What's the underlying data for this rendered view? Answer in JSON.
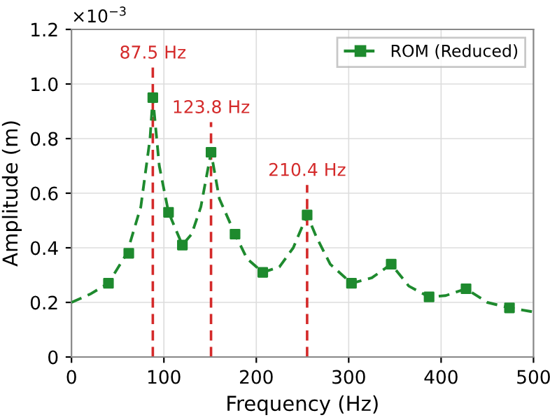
{
  "chart_data": {
    "type": "line",
    "xlabel": "Frequency (Hz)",
    "ylabel": "Amplitude (m)",
    "annotations": [
      "×10$^{−3}$"
    ],
    "xlim": [
      0,
      500
    ],
    "xticks": [
      0,
      100,
      200,
      300,
      400,
      500
    ],
    "ylim": [
      0,
      1.2
    ],
    "yticks": [
      0,
      0.2,
      0.4,
      0.6,
      0.8,
      {
        "value": 1,
        "label": "1.0"
      },
      1.2
    ],
    "grid": true,
    "legend": "top right",
    "series": [
      {
        "color": "#1e8a2e",
        "line_style": "dashed",
        "marker": "none",
        "x": [
          0,
          20,
          40,
          60,
          75,
          85,
          88,
          95,
          105,
          120,
          130,
          140,
          151,
          160,
          177,
          190,
          207,
          225,
          240,
          255,
          265,
          280,
          303,
          325,
          346,
          365,
          387,
          405,
          427,
          450,
          474,
          500
        ],
        "values": [
          0.2,
          0.23,
          0.27,
          0.38,
          0.55,
          0.8,
          0.95,
          0.7,
          0.53,
          0.41,
          0.45,
          0.55,
          0.75,
          0.58,
          0.45,
          0.36,
          0.31,
          0.33,
          0.4,
          0.52,
          0.44,
          0.34,
          0.27,
          0.29,
          0.34,
          0.26,
          0.22,
          0.225,
          0.25,
          0.2,
          0.18,
          0.165
        ]
      },
      {
        "type": "scatter",
        "name": "ROM (Reduced)",
        "color": "#1e8a2e",
        "marker": "square",
        "x": [
          40,
          62,
          88,
          105,
          120,
          151,
          177,
          207,
          255,
          303,
          346,
          387,
          427,
          474
        ],
        "values": [
          0.27,
          0.38,
          0.95,
          0.53,
          0.41,
          0.75,
          0.45,
          0.31,
          0.52,
          0.27,
          0.34,
          0.22,
          0.25,
          0.18
        ]
      }
    ],
    "ref_lines": [
      {
        "axis": "x",
        "value": 88,
        "label": "87.5 Hz",
        "color": "#d42a2a",
        "line_style": "dashed"
      },
      {
        "axis": "x",
        "value": 151,
        "label": "123.8 Hz",
        "color": "#d42a2a",
        "line_style": "dashed"
      },
      {
        "axis": "x",
        "value": 255,
        "label": "210.4 Hz",
        "color": "#d42a2a",
        "line_style": "dashed"
      }
    ]
  }
}
